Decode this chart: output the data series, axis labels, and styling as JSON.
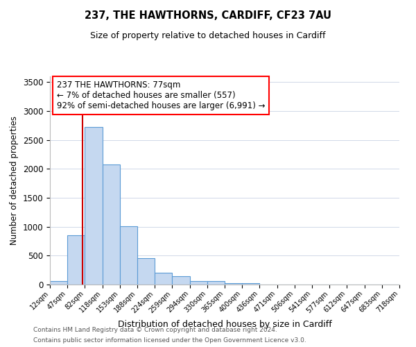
{
  "title": "237, THE HAWTHORNS, CARDIFF, CF23 7AU",
  "subtitle": "Size of property relative to detached houses in Cardiff",
  "xlabel": "Distribution of detached houses by size in Cardiff",
  "ylabel": "Number of detached properties",
  "bar_values": [
    55,
    850,
    2725,
    2075,
    1010,
    455,
    205,
    145,
    60,
    55,
    30,
    25,
    5,
    0,
    0,
    0,
    0,
    0,
    0,
    0
  ],
  "bin_labels": [
    "12sqm",
    "47sqm",
    "82sqm",
    "118sqm",
    "153sqm",
    "188sqm",
    "224sqm",
    "259sqm",
    "294sqm",
    "330sqm",
    "365sqm",
    "400sqm",
    "436sqm",
    "471sqm",
    "506sqm",
    "541sqm",
    "577sqm",
    "612sqm",
    "647sqm",
    "683sqm",
    "718sqm"
  ],
  "bar_color": "#c5d8f0",
  "bar_edge_color": "#5b9bd5",
  "vline_color": "#cc0000",
  "vline_position": 1.857,
  "annotation_text_line1": "237 THE HAWTHORNS: 77sqm",
  "annotation_text_line2": "← 7% of detached houses are smaller (557)",
  "annotation_text_line3": "92% of semi-detached houses are larger (6,991) →",
  "ylim": [
    0,
    3600
  ],
  "yticks": [
    0,
    500,
    1000,
    1500,
    2000,
    2500,
    3000,
    3500
  ],
  "background_color": "#ffffff",
  "grid_color": "#d0d8e8",
  "footer_line1": "Contains HM Land Registry data © Crown copyright and database right 2024.",
  "footer_line2": "Contains public sector information licensed under the Open Government Licence v3.0."
}
